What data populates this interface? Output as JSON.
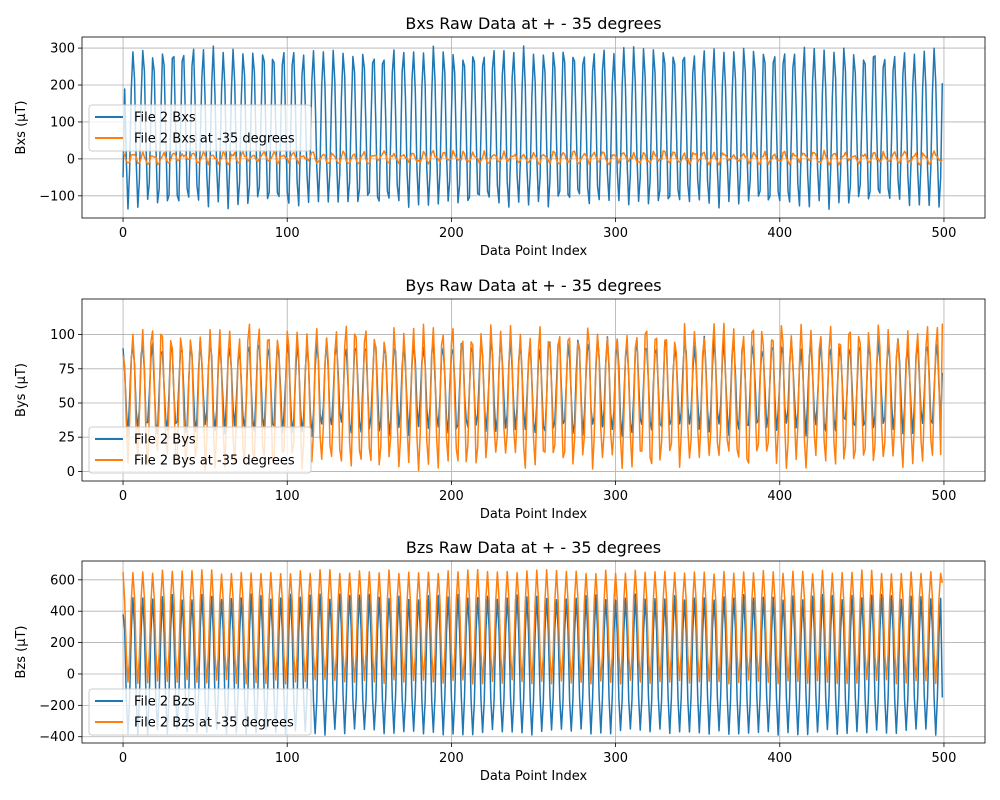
{
  "chart_data": [
    {
      "type": "line",
      "title": "Bxs Raw Data at + - 35 degrees",
      "xlabel": "Data Point Index",
      "ylabel": "Bxs (µT)",
      "xlim": [
        -25,
        525
      ],
      "ylim": [
        -160,
        330
      ],
      "xticks": [
        0,
        100,
        200,
        300,
        400,
        500
      ],
      "yticks": [
        -100,
        0,
        100,
        200,
        300
      ],
      "grid": true,
      "legend_position": "center-left",
      "series": [
        {
          "name": "File 2 Bxs",
          "color": "#1f77b4",
          "pattern": {
            "n": 500,
            "period": 6.1,
            "mean": 85,
            "amp": 210,
            "noise": 12,
            "start": -50,
            "end": 205
          }
        },
        {
          "name": "File 2 Bxs at -35 degrees",
          "color": "#ff7f0e",
          "pattern": {
            "n": 500,
            "period": 6.1,
            "mean": 3,
            "amp": 12,
            "noise": 8,
            "start": 15,
            "end": -2
          }
        }
      ]
    },
    {
      "type": "line",
      "title": "Bys Raw Data at + - 35 degrees",
      "xlabel": "Data Point Index",
      "ylabel": "Bys (µT)",
      "xlim": [
        -25,
        525
      ],
      "ylim": [
        -7,
        126
      ],
      "xticks": [
        0,
        100,
        200,
        300,
        400,
        500
      ],
      "yticks": [
        0,
        25,
        50,
        75,
        100
      ],
      "grid": true,
      "legend_position": "lower-left",
      "series": [
        {
          "name": "File 2 Bys",
          "color": "#1f77b4",
          "pattern": {
            "n": 500,
            "period": 5.9,
            "mean": 62,
            "amp": 32,
            "noise": 5,
            "start": 90,
            "end": 72
          }
        },
        {
          "name": "File 2 Bys at -35 degrees",
          "color": "#ff7f0e",
          "pattern": {
            "n": 500,
            "period": 5.9,
            "mean": 55,
            "amp": 48,
            "noise": 7,
            "start": 85,
            "end": 108
          }
        }
      ]
    },
    {
      "type": "line",
      "title": "Bzs Raw Data at + - 35 degrees",
      "xlabel": "Data Point Index",
      "ylabel": "Bzs (µT)",
      "xlim": [
        -25,
        525
      ],
      "ylim": [
        -440,
        720
      ],
      "xticks": [
        0,
        100,
        200,
        300,
        400,
        500
      ],
      "yticks": [
        -400,
        -200,
        0,
        200,
        400,
        600
      ],
      "grid": true,
      "legend_position": "lower-left",
      "series": [
        {
          "name": "File 2 Bzs",
          "color": "#1f77b4",
          "pattern": {
            "n": 500,
            "period": 6.0,
            "mean": 60,
            "amp": 430,
            "noise": 20,
            "start": 380,
            "end": -150
          }
        },
        {
          "name": "File 2 Bzs at -35 degrees",
          "color": "#ff7f0e",
          "pattern": {
            "n": 500,
            "period": 6.0,
            "mean": 300,
            "amp": 350,
            "noise": 15,
            "start": 650,
            "end": 580
          }
        }
      ]
    }
  ]
}
